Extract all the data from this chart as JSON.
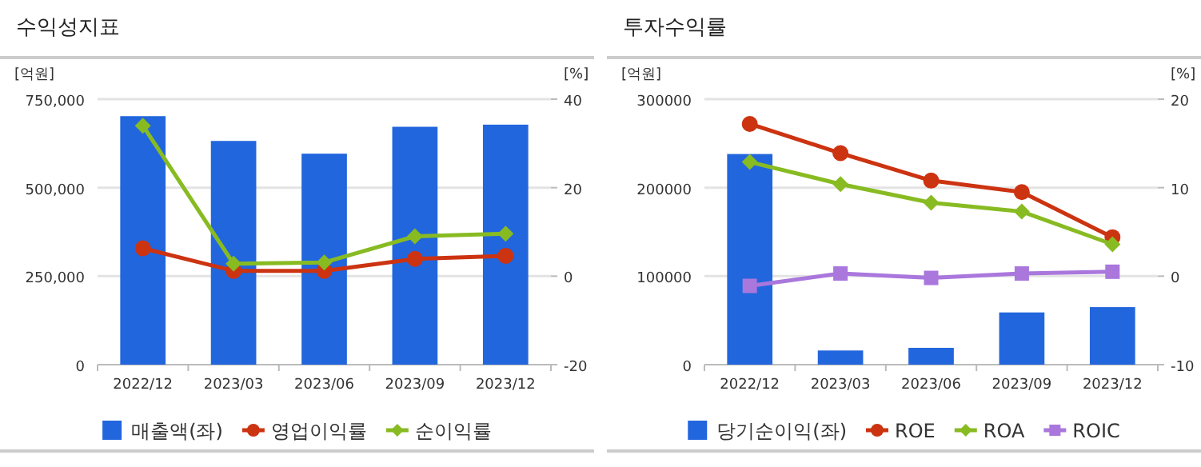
{
  "chart_data": [
    {
      "type": "bar",
      "title": "수익성지표",
      "ylabel": "[억원]",
      "y2label": "[%]",
      "categories": [
        "2022/12",
        "2023/03",
        "2023/06",
        "2023/09",
        "2023/12"
      ],
      "ylim": [
        0,
        750000
      ],
      "yticks": [
        0,
        {
          "value": 250000,
          "label": "250,000"
        },
        {
          "value": 500000,
          "label": "500,000"
        },
        {
          "value": 750000,
          "label": "750,000"
        }
      ],
      "y2lim": [
        -20,
        40
      ],
      "y2ticks": [
        -20,
        0,
        20,
        40
      ],
      "grid": "y",
      "legend": "bottom",
      "series": [
        {
          "name": "매출액(좌)",
          "color": "#2266dd",
          "values": [
            702000,
            632000,
            596000,
            672000,
            678000
          ]
        },
        {
          "name": "영업이익률",
          "type": "line",
          "axis": "y2",
          "marker": "circle",
          "color": "#cc3311",
          "values": [
            6.3,
            1.2,
            1.2,
            3.9,
            4.6
          ]
        },
        {
          "name": "순이익률",
          "type": "line",
          "axis": "y2",
          "marker": "diamond",
          "color": "#88bb22",
          "values": [
            34.0,
            2.8,
            3.1,
            9.0,
            9.6
          ]
        }
      ]
    },
    {
      "type": "bar",
      "title": "투자수익률",
      "ylabel": "[억원]",
      "y2label": "[%]",
      "categories": [
        "2022/12",
        "2023/03",
        "2023/06",
        "2023/09",
        "2023/12"
      ],
      "ylim": [
        0,
        300000
      ],
      "yticks": [
        0,
        100000,
        200000,
        300000
      ],
      "y2lim": [
        -10,
        20
      ],
      "y2ticks": [
        -10,
        0,
        10,
        20
      ],
      "grid": "y",
      "legend": "bottom",
      "series": [
        {
          "name": "당기순이익(좌)",
          "color": "#2266dd",
          "values": [
            238000,
            16000,
            19000,
            59000,
            65000
          ]
        },
        {
          "name": "ROE",
          "type": "line",
          "axis": "y2",
          "marker": "circle",
          "color": "#cc3311",
          "values": [
            17.2,
            13.9,
            10.8,
            9.5,
            4.4
          ]
        },
        {
          "name": "ROA",
          "type": "line",
          "axis": "y2",
          "marker": "diamond",
          "color": "#88bb22",
          "values": [
            12.9,
            10.4,
            8.3,
            7.3,
            3.6
          ]
        },
        {
          "name": "ROIC",
          "type": "line",
          "axis": "y2",
          "marker": "square",
          "color": "#aa77dd",
          "values": [
            -1.1,
            0.3,
            -0.2,
            0.3,
            0.5
          ]
        }
      ]
    }
  ]
}
